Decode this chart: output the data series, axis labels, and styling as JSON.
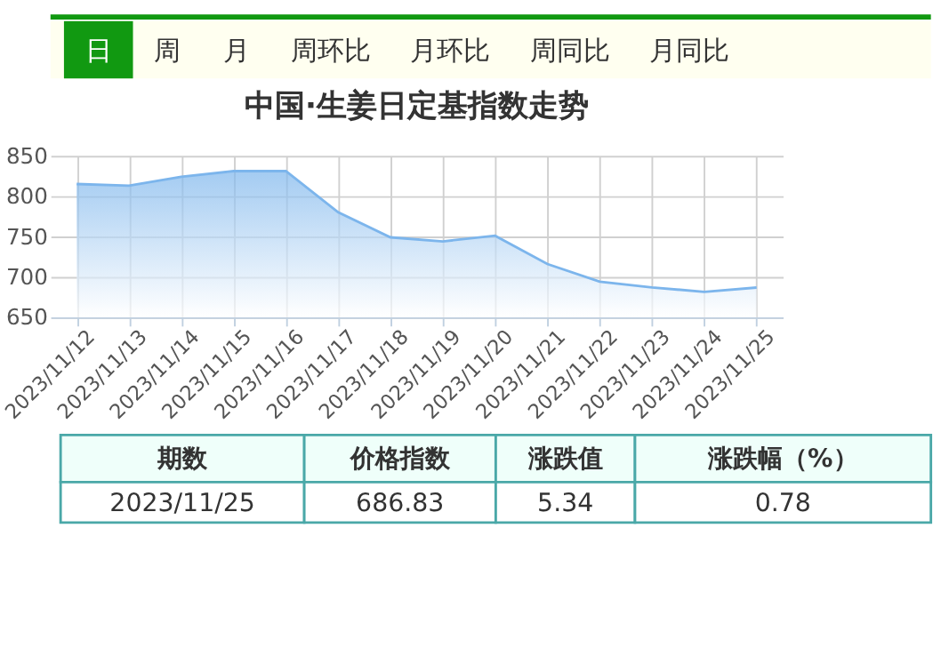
{
  "chart_data": {
    "type": "area",
    "title": "中国·生姜日定基指数走势",
    "categories": [
      "2023/11/12",
      "2023/11/13",
      "2023/11/14",
      "2023/11/15",
      "2023/11/16",
      "2023/11/17",
      "2023/11/18",
      "2023/11/19",
      "2023/11/20",
      "2023/11/21",
      "2023/11/22",
      "2023/11/23",
      "2023/11/24",
      "2023/11/25"
    ],
    "series": [
      {
        "color": "#7cb5ec",
        "values": [
          815,
          813,
          824,
          831,
          831,
          780,
          749,
          744,
          751,
          716,
          694,
          687,
          681.5,
          686.83
        ]
      }
    ],
    "ylim": [
      650,
      850
    ],
    "yticks": [
      650,
      700,
      750,
      800,
      850
    ],
    "grid": true,
    "annotations": [
      "日",
      "周",
      "月",
      "周环比",
      "月环比",
      "周同比",
      "月同比",
      "期数",
      "价格指数",
      "涨跌值",
      "涨跌幅（%）",
      "2023/11/25",
      "686.83",
      "5.34",
      "0.78"
    ]
  }
}
